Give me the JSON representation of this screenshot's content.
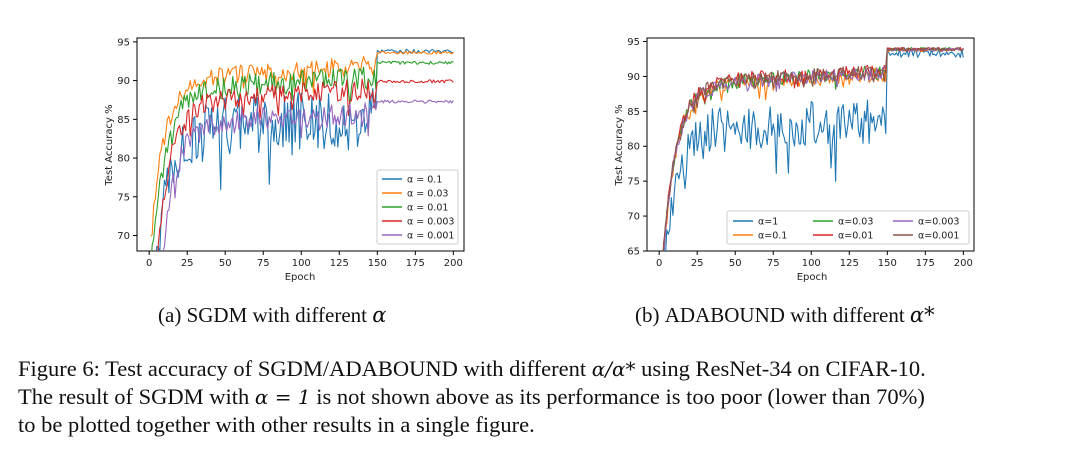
{
  "chart_data": [
    {
      "type": "line",
      "panel": "a",
      "xlabel": "Epoch",
      "ylabel": "Test Accuracy %",
      "xlim": [
        -8,
        207
      ],
      "ylim": [
        68,
        95.5
      ],
      "xticks": [
        "0",
        "25",
        "50",
        "75",
        "100",
        "125",
        "150",
        "175",
        "200"
      ],
      "yticks": [
        "70",
        "75",
        "80",
        "85",
        "90",
        "95"
      ],
      "legend_position": "lower-right",
      "legend_columns": 1,
      "series": [
        {
          "name": "α = 0.1",
          "color": "#1f77b4",
          "start": 58,
          "pre_level": 84.0,
          "pre_noise": 3.8,
          "post_level": 93.8,
          "post_noise": 0.25
        },
        {
          "name": "α = 0.03",
          "color": "#ff7f0e",
          "start": 70,
          "pre_level": 90.5,
          "pre_noise": 1.3,
          "post_level": 93.6,
          "post_noise": 0.2
        },
        {
          "name": "α = 0.01",
          "color": "#2ca02c",
          "start": 66,
          "pre_level": 89.0,
          "pre_noise": 1.5,
          "post_level": 92.3,
          "post_noise": 0.2
        },
        {
          "name": "α = 0.003",
          "color": "#d62728",
          "start": 55,
          "pre_level": 87.5,
          "pre_noise": 1.4,
          "post_level": 89.9,
          "post_noise": 0.2
        },
        {
          "name": "α = 0.001",
          "color": "#9467bd",
          "start": 45,
          "pre_level": 84.5,
          "pre_noise": 1.5,
          "post_level": 87.3,
          "post_noise": 0.2
        }
      ]
    },
    {
      "type": "line",
      "panel": "b",
      "xlabel": "Epoch",
      "ylabel": "Test Accuracy %",
      "xlim": [
        -8,
        207
      ],
      "ylim": [
        65,
        95.5
      ],
      "xticks": [
        "0",
        "25",
        "50",
        "75",
        "100",
        "125",
        "150",
        "175",
        "200"
      ],
      "yticks": [
        "65",
        "70",
        "75",
        "80",
        "85",
        "90",
        "95"
      ],
      "legend_position": "lower-right",
      "legend_columns": 3,
      "series": [
        {
          "name": "α=1",
          "color": "#1f77b4",
          "start": 60,
          "pre_level": 82.5,
          "pre_noise": 3.5,
          "post_level": 93.3,
          "post_noise": 0.6
        },
        {
          "name": "α=0.1",
          "color": "#ff7f0e",
          "start": 60,
          "pre_level": 88.8,
          "pre_noise": 1.1,
          "post_level": 93.8,
          "post_noise": 0.25
        },
        {
          "name": "α=0.03",
          "color": "#2ca02c",
          "start": 60,
          "pre_level": 89.2,
          "pre_noise": 1.0,
          "post_level": 93.9,
          "post_noise": 0.25
        },
        {
          "name": "α=0.01",
          "color": "#d62728",
          "start": 60,
          "pre_level": 89.4,
          "pre_noise": 1.0,
          "post_level": 93.9,
          "post_noise": 0.25
        },
        {
          "name": "α=0.003",
          "color": "#9467bd",
          "start": 60,
          "pre_level": 89.0,
          "pre_noise": 1.0,
          "post_level": 93.8,
          "post_noise": 0.25
        },
        {
          "name": "α=0.001",
          "color": "#8c564b",
          "start": 60,
          "pre_level": 89.3,
          "pre_noise": 1.0,
          "post_level": 93.9,
          "post_noise": 0.25
        }
      ]
    }
  ],
  "captions": {
    "a_prefix": "(a) ",
    "a_algo": "SGDM",
    "a_suffix": " with different ",
    "a_sym": "α",
    "b_prefix": "(b) ",
    "b_algo": "ADABOUND",
    "b_suffix": " with different ",
    "b_sym": "α*"
  },
  "figure_caption": {
    "t1": "Figure 6: Test accuracy of ",
    "t2": "SGDM/ADABOUND",
    "t3": " with different ",
    "t4": "α/α*",
    "t5": " using ResNet-34 on CIFAR-10.",
    "t6": "The result of ",
    "t7": "SGDM",
    "t8": " with ",
    "t9": "α = 1",
    "t10": " is not shown above as its performance is too poor (lower than 70%)",
    "t11": "to be plotted together with other results in a single figure."
  }
}
